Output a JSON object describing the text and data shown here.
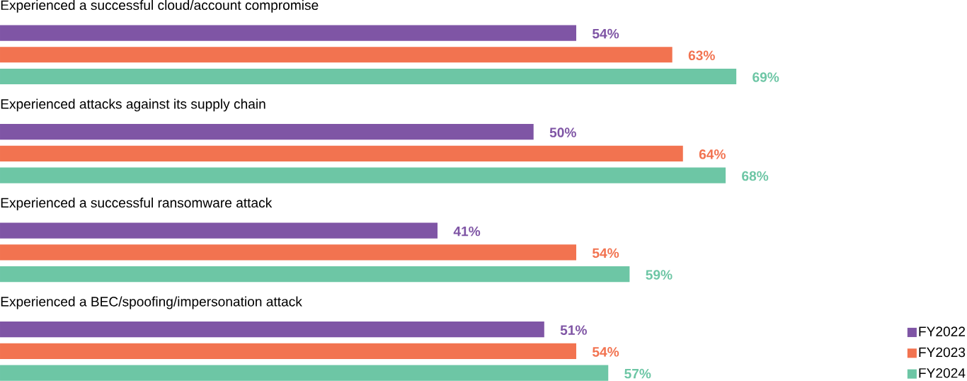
{
  "chart_data": {
    "type": "bar",
    "orientation": "horizontal",
    "categories": [
      "Experienced a successful cloud/account compromise",
      "Experienced attacks against its supply chain",
      "Experienced a successful ransomware attack",
      "Experienced a BEC/spoofing/impersonation attack"
    ],
    "series": [
      {
        "name": "FY2022",
        "color": "#7f55a5",
        "values": [
          54,
          50,
          41,
          51
        ],
        "value_labels": [
          "54%",
          "50%",
          "41%",
          "51%"
        ]
      },
      {
        "name": "FY2023",
        "color": "#f27350",
        "values": [
          63,
          64,
          54,
          54
        ],
        "value_labels": [
          "63%",
          "64%",
          "54%",
          "54%"
        ]
      },
      {
        "name": "FY2024",
        "color": "#6dc6a5",
        "values": [
          69,
          68,
          59,
          57
        ],
        "value_labels": [
          "69%",
          "68%",
          "59%",
          "57%"
        ]
      }
    ],
    "legend": "bottom right"
  }
}
